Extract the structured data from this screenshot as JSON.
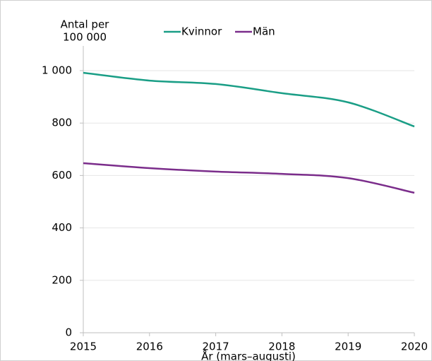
{
  "chart_data": {
    "type": "line",
    "y_label": [
      "Antal per",
      "100 000"
    ],
    "x_label": "År (mars–augusti)",
    "x": [
      2015,
      2016,
      2017,
      2018,
      2019,
      2020
    ],
    "xlim": [
      2015,
      2020
    ],
    "xticks": [
      2015,
      2016,
      2017,
      2018,
      2019,
      2020
    ],
    "ylim": [
      0,
      1000
    ],
    "yticks": [
      0,
      200,
      400,
      600,
      800,
      {
        "value": 1000,
        "label": "1 000"
      }
    ],
    "grid": true,
    "legend": "top",
    "series": [
      {
        "name": "Kvinnor",
        "color": "#1a9e86",
        "values": [
          992,
          962,
          949,
          914,
          879,
          787
        ]
      },
      {
        "name": "Män",
        "color": "#7b2d8b",
        "values": [
          647,
          628,
          615,
          606,
          590,
          534
        ]
      }
    ]
  }
}
